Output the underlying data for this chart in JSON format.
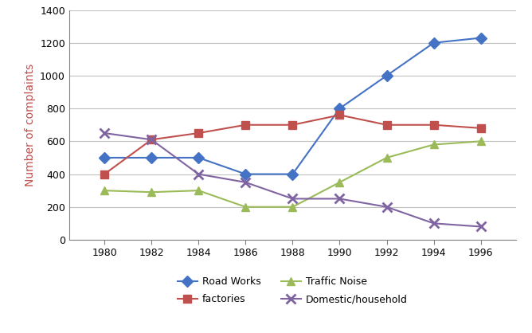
{
  "years": [
    1980,
    1982,
    1984,
    1986,
    1988,
    1990,
    1992,
    1994,
    1996
  ],
  "road_works": [
    500,
    500,
    500,
    400,
    400,
    800,
    1000,
    1200,
    1230
  ],
  "factories": [
    400,
    610,
    650,
    700,
    700,
    760,
    700,
    700,
    680
  ],
  "traffic_noise": [
    300,
    290,
    300,
    200,
    200,
    350,
    500,
    580,
    600
  ],
  "domestic_household": [
    650,
    610,
    400,
    350,
    250,
    250,
    200,
    100,
    80
  ],
  "road_works_color": "#4472C4",
  "factories_color": "#C0504D",
  "traffic_noise_color": "#9BBB59",
  "domestic_color": "#8064A2",
  "road_works_marker": "D",
  "factories_marker": "s",
  "traffic_noise_marker": "^",
  "domestic_marker": "x",
  "ylabel": "Number of complaints",
  "ylabel_color": "#C0504D",
  "ylim": [
    0,
    1400
  ],
  "yticks": [
    0,
    200,
    400,
    600,
    800,
    1000,
    1200,
    1400
  ],
  "xlim": [
    1978.5,
    1997.5
  ],
  "xticks": [
    1980,
    1982,
    1984,
    1986,
    1988,
    1990,
    1992,
    1994,
    1996
  ],
  "legend_road_works": "Road Works",
  "legend_factories": "factories",
  "legend_traffic_noise": "Traffic Noise",
  "legend_domestic": "Domestic/household",
  "background_color": "#ffffff",
  "grid_color": "#c0c0c0",
  "markersize": 7,
  "linewidth": 1.5,
  "spine_color": "#808080"
}
